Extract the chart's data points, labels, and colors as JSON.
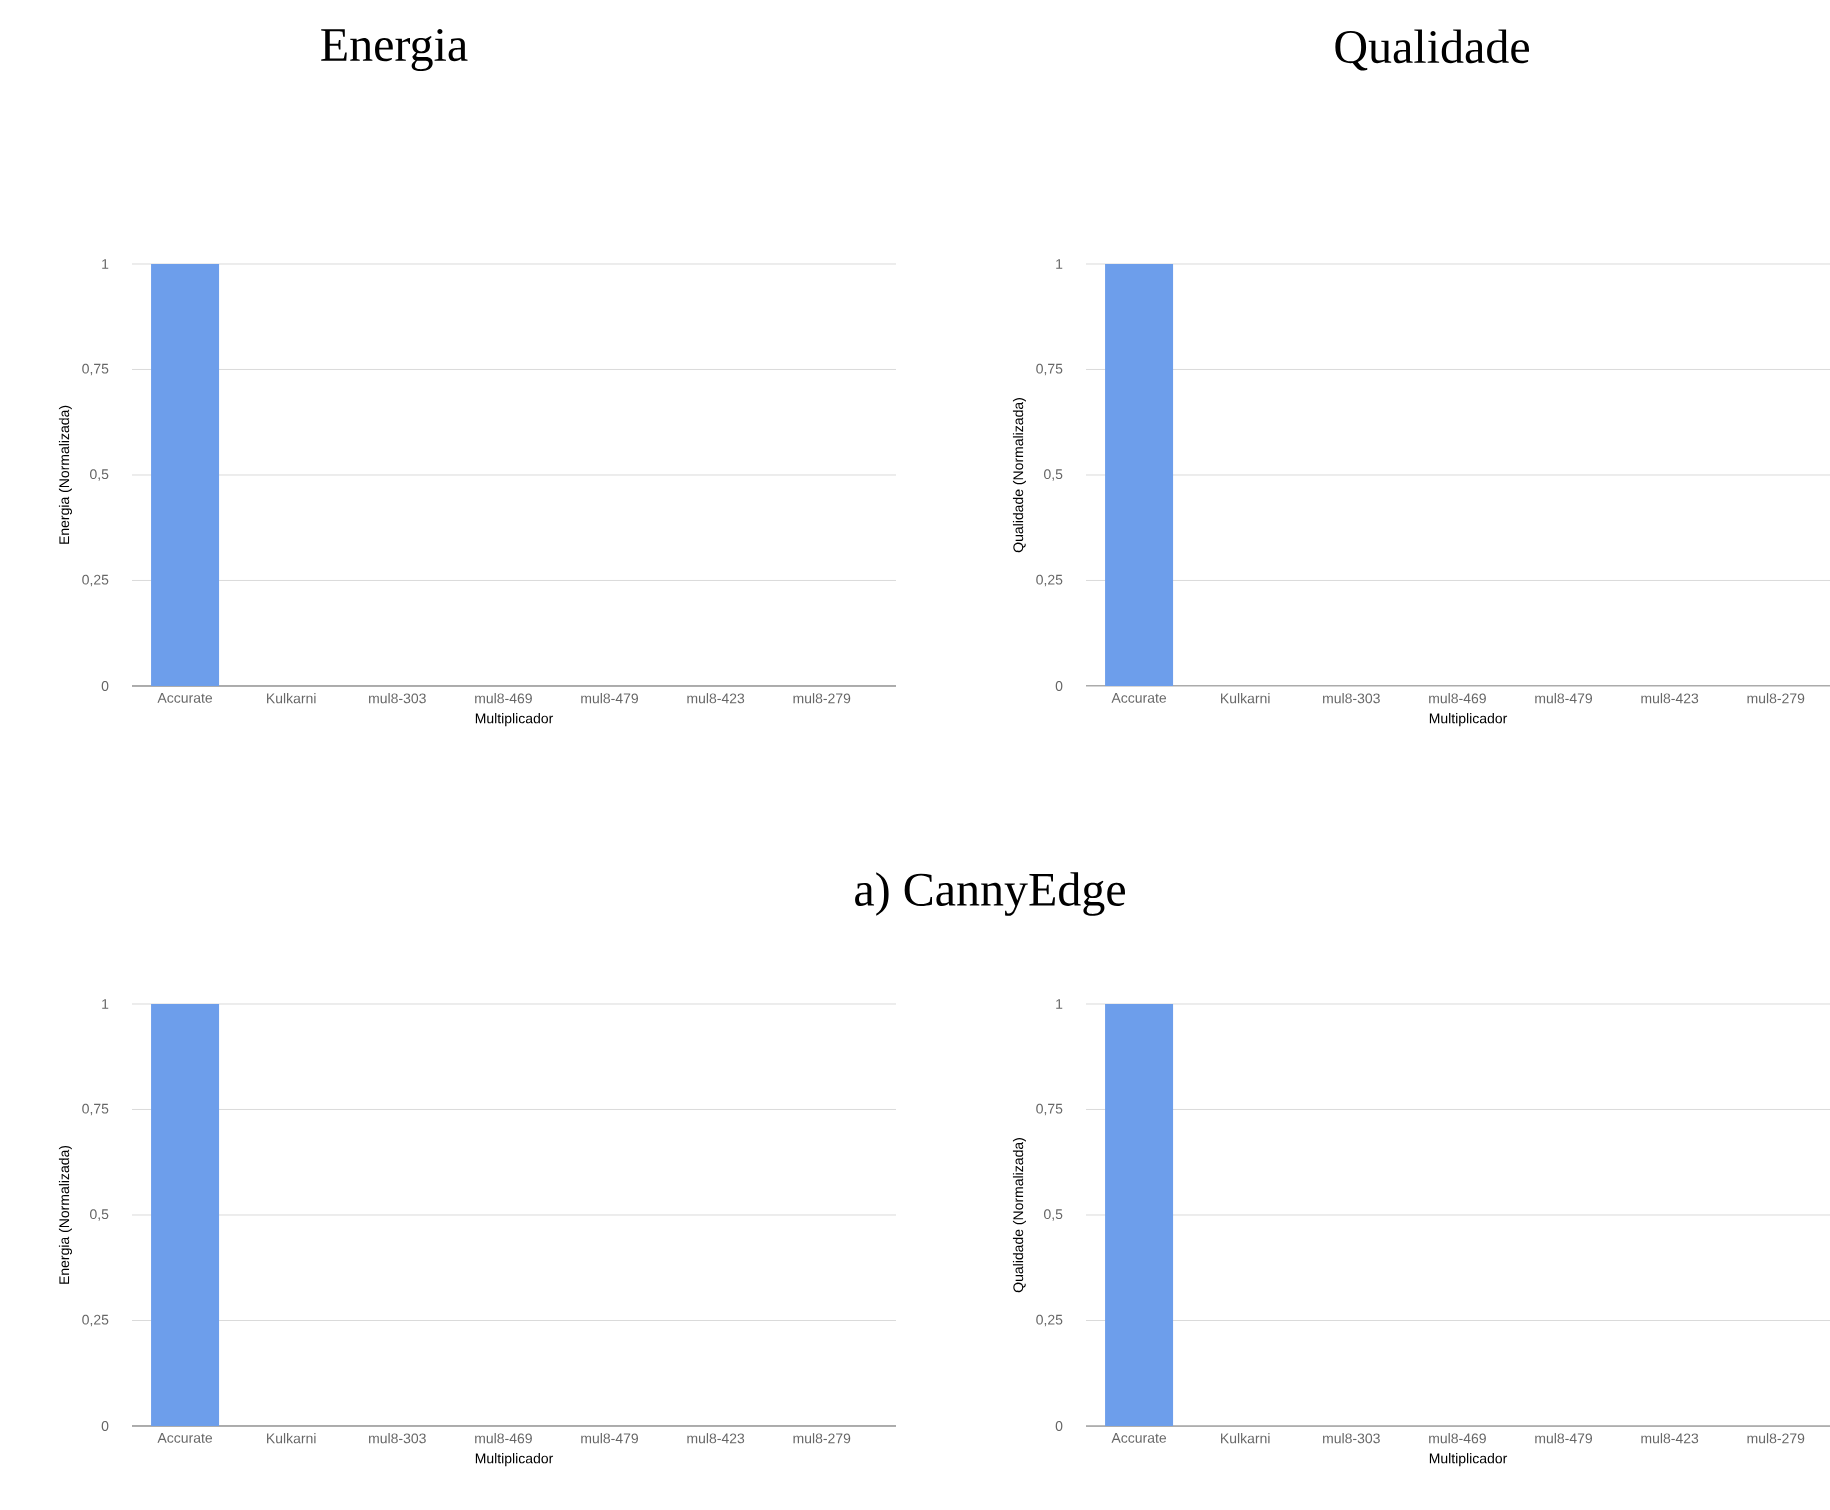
{
  "chart_data": [
    {
      "type": "bar",
      "title": "Energia",
      "categories": [
        "Accurate",
        "Kulkarni",
        "mul8-303",
        "mul8-469",
        "mul8-479",
        "mul8-423",
        "mul8-279"
      ],
      "values": [
        1,
        0,
        0,
        0,
        0,
        0,
        0
      ],
      "color": "#6d9eeb",
      "xlabel": "Multiplicador",
      "ylabel": "Energia (Normalizada)",
      "ylim": [
        0,
        1
      ],
      "yticks": [
        0,
        {
          "value": 0.25,
          "label": "0,25"
        },
        {
          "value": 0.5,
          "label": "0,5"
        },
        {
          "value": 0.75,
          "label": "0,75"
        },
        1
      ],
      "grid": "y",
      "annotations": [
        "a)   CannyEdge"
      ]
    },
    {
      "type": "bar",
      "title": "Qualidade",
      "categories": [
        "Accurate",
        "Kulkarni",
        "mul8-303",
        "mul8-469",
        "mul8-479",
        "mul8-423",
        "mul8-279"
      ],
      "values": [
        1,
        0,
        0,
        0,
        0,
        0,
        0
      ],
      "color": "#6d9eeb",
      "xlabel": "Multiplicador",
      "ylabel": "Qualidade (Normalizada)",
      "ylim": [
        0,
        1
      ],
      "yticks": [
        0,
        {
          "value": 0.25,
          "label": "0,25"
        },
        {
          "value": 0.5,
          "label": "0,5"
        },
        {
          "value": 0.75,
          "label": "0,75"
        },
        1
      ],
      "grid": "y"
    },
    {
      "type": "bar",
      "categories": [
        "Accurate",
        "Kulkarni",
        "mul8-303",
        "mul8-469",
        "mul8-479",
        "mul8-423",
        "mul8-279"
      ],
      "values": [
        1,
        0,
        0,
        0,
        0,
        0,
        0
      ],
      "color": "#6d9eeb",
      "xlabel": "Multiplicador",
      "ylabel": "Energia (Normalizada)",
      "ylim": [
        0,
        1
      ],
      "yticks": [
        0,
        {
          "value": 0.25,
          "label": "0,25"
        },
        {
          "value": 0.5,
          "label": "0,5"
        },
        {
          "value": 0.75,
          "label": "0,75"
        },
        1
      ],
      "grid": "y"
    },
    {
      "type": "bar",
      "categories": [
        "Accurate",
        "Kulkarni",
        "mul8-303",
        "mul8-469",
        "mul8-479",
        "mul8-423",
        "mul8-279"
      ],
      "values": [
        1,
        0,
        0,
        0,
        0,
        0,
        0
      ],
      "color": "#6d9eeb",
      "xlabel": "Multiplicador",
      "ylabel": "Qualidade (Normalizada)",
      "ylim": [
        0,
        1
      ],
      "yticks": [
        0,
        {
          "value": 0.25,
          "label": "0,25"
        },
        {
          "value": 0.5,
          "label": "0,5"
        },
        {
          "value": 0.75,
          "label": "0,75"
        },
        1
      ],
      "grid": "y"
    }
  ]
}
